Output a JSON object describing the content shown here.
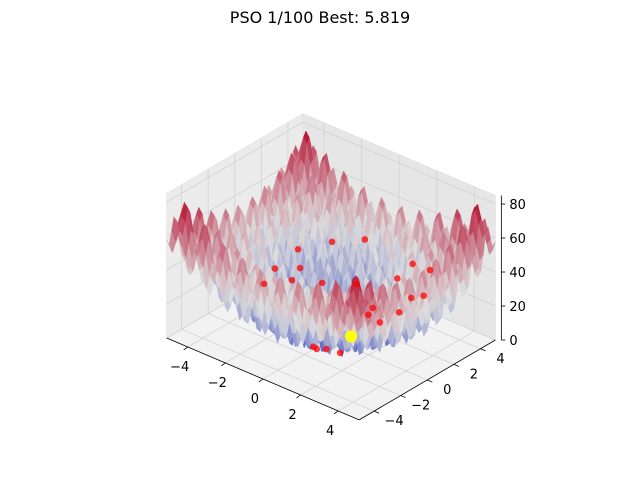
{
  "chart_data": {
    "type": "surface3d",
    "title": "PSO 1/100 Best: 5.819",
    "function": "rastrigin",
    "colormap": "coolwarm",
    "surface_color_low": "#3b4cc0",
    "surface_color_mid": "#dddddd",
    "surface_color_high": "#b40426",
    "xlabel": "",
    "ylabel": "",
    "zlabel": "",
    "xlim": [
      -5.12,
      5.12
    ],
    "ylim": [
      -5.12,
      5.12
    ],
    "zlim": [
      0,
      85
    ],
    "x_ticks": [
      "−4",
      "−2",
      "0",
      "2",
      "4"
    ],
    "y_ticks": [
      "−4",
      "−2",
      "0",
      "2",
      "4"
    ],
    "z_ticks": [
      "0",
      "20",
      "40",
      "60",
      "80"
    ],
    "x_tick_values": [
      -4,
      -2,
      0,
      2,
      4
    ],
    "y_tick_values": [
      -4,
      -2,
      0,
      2,
      4
    ],
    "z_tick_values": [
      0,
      20,
      40,
      60,
      80
    ],
    "grid": true,
    "particle_color": "#ff0000",
    "best_color": "#ffff00",
    "particles": [
      {
        "x": -3.2,
        "y": 0.3,
        "z": 25
      },
      {
        "x": -2.6,
        "y": 1.2,
        "z": 35
      },
      {
        "x": -3.0,
        "y": -0.8,
        "z": 22
      },
      {
        "x": -2.0,
        "y": 0.5,
        "z": 30
      },
      {
        "x": -1.8,
        "y": -0.4,
        "z": 28
      },
      {
        "x": -1.5,
        "y": 2.2,
        "z": 40
      },
      {
        "x": -0.9,
        "y": 0.6,
        "z": 26
      },
      {
        "x": 0.1,
        "y": 2.4,
        "z": 48
      },
      {
        "x": 0.6,
        "y": 1.1,
        "z": 30
      },
      {
        "x": 2.5,
        "y": 2.6,
        "z": 44
      },
      {
        "x": 3.0,
        "y": 3.2,
        "z": 40
      },
      {
        "x": 1.8,
        "y": 0.6,
        "z": 24
      },
      {
        "x": 2.2,
        "y": -0.3,
        "z": 26
      },
      {
        "x": 2.6,
        "y": 0.0,
        "z": 22
      },
      {
        "x": 3.2,
        "y": 0.6,
        "z": 28
      },
      {
        "x": 3.8,
        "y": 1.6,
        "z": 36
      },
      {
        "x": 1.9,
        "y": 2.3,
        "z": 34
      },
      {
        "x": 0.4,
        "y": -1.9,
        "z": 6
      },
      {
        "x": 0.8,
        "y": -2.2,
        "z": 8
      },
      {
        "x": 1.1,
        "y": -1.9,
        "z": 8
      },
      {
        "x": 1.9,
        "y": -2.0,
        "z": 10
      },
      {
        "x": 3.0,
        "y": 1.8,
        "z": 30
      }
    ],
    "best": {
      "x": 1.0,
      "y": 0.1,
      "z": 5.819
    }
  }
}
